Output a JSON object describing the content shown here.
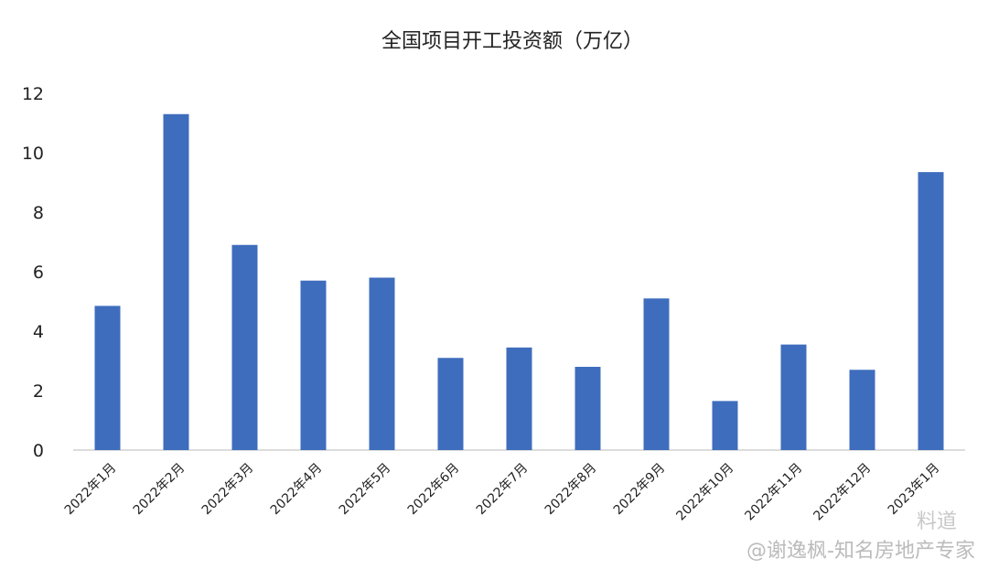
{
  "chart_data": {
    "type": "bar",
    "title": "全国项目开工投资额（万亿）",
    "categories": [
      "2022年1月",
      "2022年2月",
      "2022年3月",
      "2022年4月",
      "2022年5月",
      "2022年6月",
      "2022年7月",
      "2022年8月",
      "2022年9月",
      "2022年10月",
      "2022年11月",
      "2022年12月",
      "2023年1月"
    ],
    "values": [
      4.85,
      11.3,
      6.9,
      5.7,
      5.8,
      3.1,
      3.45,
      2.8,
      5.1,
      1.65,
      3.55,
      2.7,
      9.35
    ],
    "yticks": [
      "0",
      "2",
      "4",
      "6",
      "8",
      "10",
      "12"
    ],
    "ylim": [
      0,
      12
    ],
    "xlabel": "",
    "ylabel": "",
    "grid": false,
    "bar_color": "#3f6dbd"
  },
  "watermark": {
    "text": "@谢逸枫-知名房地产专家",
    "logo_text": "料道"
  }
}
